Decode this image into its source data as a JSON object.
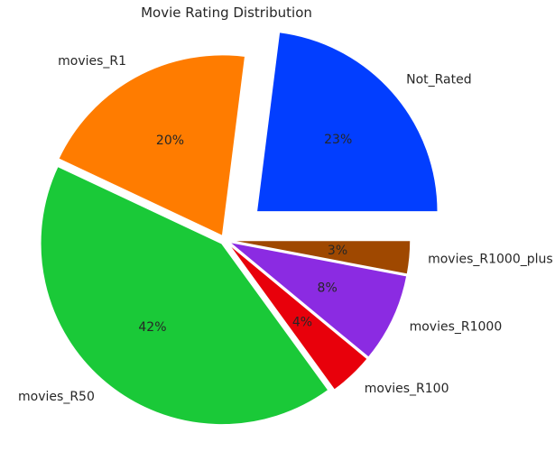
{
  "chart_data": {
    "type": "pie",
    "title": "Movie Rating Distribution",
    "start_angle_deg": 0,
    "direction": "counterclockwise",
    "slices": [
      {
        "label": "Not_Rated",
        "value": 23,
        "pct_text": "23%",
        "color": "#023eff",
        "exploded": true
      },
      {
        "label": "movies_R1",
        "value": 20,
        "pct_text": "20%",
        "color": "#ff7c00",
        "exploded": false
      },
      {
        "label": "movies_R50",
        "value": 42,
        "pct_text": "42%",
        "color": "#1ac938",
        "exploded": false
      },
      {
        "label": "movies_R100",
        "value": 4,
        "pct_text": "4%",
        "color": "#e8000b",
        "exploded": false
      },
      {
        "label": "movies_R1000",
        "value": 8,
        "pct_text": "8%",
        "color": "#8b2be2",
        "exploded": false
      },
      {
        "label": "movies_R1000_plus",
        "value": 3,
        "pct_text": "3%",
        "color": "#9f4800",
        "exploded": false
      }
    ]
  }
}
